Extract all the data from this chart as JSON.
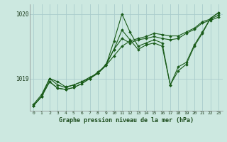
{
  "title": "Graphe pression niveau de la mer (hPa)",
  "bg_color": "#cce8e0",
  "grid_color": "#aacccc",
  "line_color": "#1a5c1a",
  "x_ticks": [
    0,
    1,
    2,
    3,
    4,
    5,
    6,
    7,
    8,
    9,
    10,
    11,
    12,
    13,
    14,
    15,
    16,
    17,
    18,
    19,
    20,
    21,
    22,
    23
  ],
  "ylim": [
    1018.5,
    1020.15
  ],
  "yticks": [
    1019.0,
    1020.0
  ],
  "series": [
    [
      1018.58,
      1018.72,
      1019.0,
      1018.9,
      1018.86,
      1018.9,
      1018.95,
      1019.0,
      1019.1,
      1019.2,
      1019.35,
      1019.5,
      1019.58,
      1019.62,
      1019.65,
      1019.7,
      1019.68,
      1019.66,
      1019.66,
      1019.72,
      1019.78,
      1019.88,
      1019.92,
      1019.98
    ],
    [
      1018.6,
      1018.75,
      1019.0,
      1018.95,
      1018.87,
      1018.9,
      1018.95,
      1019.02,
      1019.08,
      1019.22,
      1019.45,
      1019.62,
      1019.55,
      1019.6,
      1019.62,
      1019.65,
      1019.62,
      1019.6,
      1019.62,
      1019.7,
      1019.76,
      1019.86,
      1019.9,
      1019.95
    ],
    [
      1018.58,
      1018.72,
      1018.95,
      1018.85,
      1018.83,
      1018.86,
      1018.92,
      1019.0,
      1019.08,
      1019.2,
      1019.58,
      1020.0,
      1019.72,
      1019.5,
      1019.55,
      1019.6,
      1019.55,
      1018.9,
      1019.12,
      1019.22,
      1019.5,
      1019.7,
      1019.93,
      1020.02
    ],
    [
      1018.58,
      1018.72,
      1018.95,
      1018.85,
      1018.83,
      1018.86,
      1018.92,
      1019.0,
      1019.08,
      1019.2,
      1019.45,
      1019.75,
      1019.6,
      1019.45,
      1019.52,
      1019.55,
      1019.5,
      1018.9,
      1019.18,
      1019.25,
      1019.52,
      1019.72,
      1019.93,
      1020.02
    ]
  ]
}
